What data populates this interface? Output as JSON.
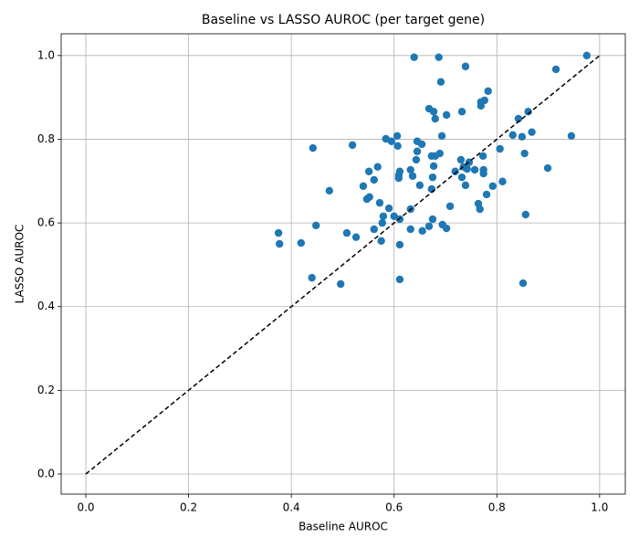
{
  "chart_data": {
    "type": "scatter",
    "title": "Baseline vs LASSO AUROC (per target gene)",
    "x_label": "Baseline AUROC",
    "y_label": "LASSO AUROC",
    "color": "#1f77b4",
    "grid": true,
    "xlim": [
      -0.048,
      1.05
    ],
    "ylim": [
      -0.048,
      1.052
    ],
    "xticks": [
      {
        "value": 0,
        "label": "0.0"
      },
      {
        "value": 0.2,
        "label": "0.2"
      },
      {
        "value": 0.4,
        "label": "0.4"
      },
      {
        "value": 0.6,
        "label": "0.6"
      },
      {
        "value": 0.8,
        "label": "0.8"
      },
      {
        "value": 1,
        "label": "1.0"
      }
    ],
    "yticks": [
      {
        "value": 0,
        "label": "0.0"
      },
      {
        "value": 0.2,
        "label": "0.2"
      },
      {
        "value": 0.4,
        "label": "0.4"
      },
      {
        "value": 0.6,
        "label": "0.6"
      },
      {
        "value": 0.8,
        "label": "0.8"
      },
      {
        "value": 1,
        "label": "1.0"
      }
    ],
    "reference_line": {
      "x": [
        0,
        1
      ],
      "y": [
        0,
        1
      ],
      "color": "#000000",
      "dashed": true
    },
    "x": [
      0.975,
      0.639,
      0.687,
      0.739,
      0.915,
      0.691,
      0.783,
      0.776,
      0.769,
      0.769,
      0.668,
      0.677,
      0.861,
      0.732,
      0.702,
      0.68,
      0.842,
      0.868,
      0.831,
      0.849,
      0.945,
      0.693,
      0.606,
      0.584,
      0.595,
      0.645,
      0.654,
      0.607,
      0.519,
      0.442,
      0.806,
      0.645,
      0.689,
      0.854,
      0.673,
      0.68,
      0.773,
      0.643,
      0.73,
      0.746,
      0.677,
      0.735,
      0.568,
      0.742,
      0.899,
      0.757,
      0.611,
      0.632,
      0.551,
      0.774,
      0.774,
      0.719,
      0.609,
      0.636,
      0.675,
      0.732,
      0.609,
      0.561,
      0.811,
      0.739,
      0.65,
      0.792,
      0.54,
      0.474,
      0.673,
      0.78,
      0.552,
      0.547,
      0.572,
      0.764,
      0.709,
      0.59,
      0.767,
      0.632,
      0.579,
      0.6,
      0.856,
      0.611,
      0.675,
      0.577,
      0.448,
      0.694,
      0.668,
      0.702,
      0.632,
      0.561,
      0.655,
      0.375,
      0.508,
      0.526,
      0.575,
      0.377,
      0.419,
      0.611,
      0.44,
      0.611,
      0.496,
      0.851
    ],
    "values": [
      1.0,
      0.996,
      0.996,
      0.974,
      0.967,
      0.937,
      0.915,
      0.893,
      0.889,
      0.88,
      0.873,
      0.866,
      0.866,
      0.866,
      0.858,
      0.849,
      0.849,
      0.817,
      0.81,
      0.806,
      0.808,
      0.808,
      0.808,
      0.801,
      0.795,
      0.795,
      0.788,
      0.784,
      0.786,
      0.779,
      0.777,
      0.771,
      0.766,
      0.766,
      0.76,
      0.76,
      0.76,
      0.751,
      0.751,
      0.745,
      0.736,
      0.734,
      0.734,
      0.729,
      0.731,
      0.727,
      0.723,
      0.727,
      0.723,
      0.727,
      0.718,
      0.723,
      0.714,
      0.712,
      0.709,
      0.709,
      0.707,
      0.703,
      0.699,
      0.69,
      0.69,
      0.688,
      0.688,
      0.677,
      0.681,
      0.668,
      0.662,
      0.657,
      0.648,
      0.646,
      0.64,
      0.635,
      0.633,
      0.633,
      0.616,
      0.616,
      0.62,
      0.609,
      0.609,
      0.6,
      0.594,
      0.596,
      0.592,
      0.587,
      0.585,
      0.585,
      0.581,
      0.576,
      0.576,
      0.566,
      0.557,
      0.55,
      0.552,
      0.548,
      0.469,
      0.465,
      0.454,
      0.456
    ]
  }
}
